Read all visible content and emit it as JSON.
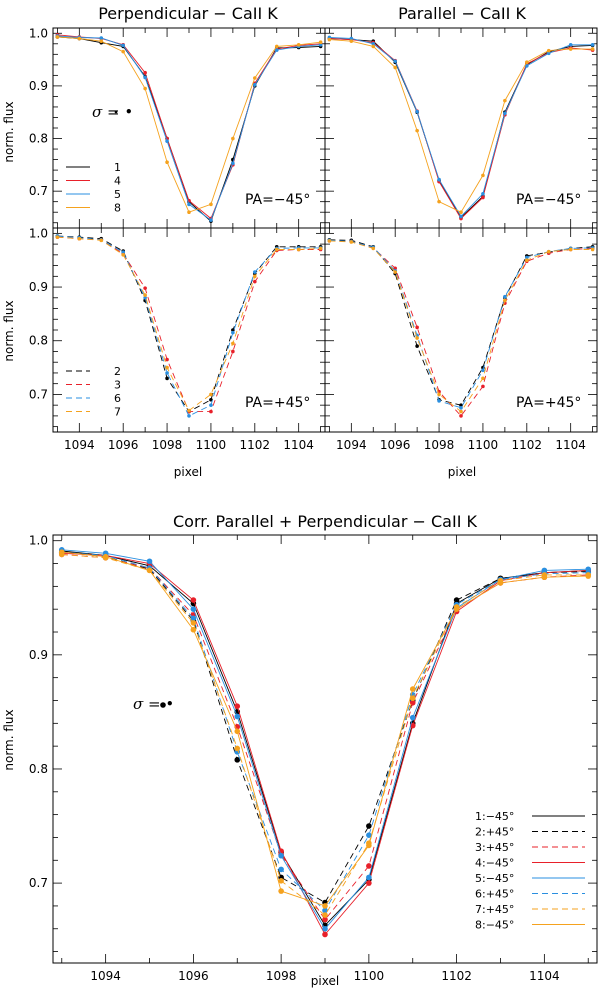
{
  "colors": {
    "1": "#000000",
    "2": "#000000",
    "3": "#e8202a",
    "4": "#e8202a",
    "5": "#2a8fe0",
    "6": "#2a8fe0",
    "7": "#f5a21e",
    "8": "#f5a21e"
  },
  "chart_data": [
    {
      "type": "line",
      "title": "Perpendicular − CaII K",
      "xlabel": "",
      "ylabel": "norm. flux",
      "xlim": [
        1092.8,
        1105.2
      ],
      "ylim": [
        0.63,
        1.01
      ],
      "xticks": [
        "1094",
        "1096",
        "1098",
        "1100",
        "1102",
        "1104"
      ],
      "yticks": [
        "0.7",
        "0.8",
        "0.9",
        "1.0"
      ],
      "annotation": "PA=−45°",
      "sigma_label": "σ = •",
      "legend": [
        "1",
        "4",
        "5",
        "8"
      ],
      "x": [
        1093,
        1094,
        1095,
        1096,
        1097,
        1098,
        1099,
        1100,
        1101,
        1102,
        1103,
        1104,
        1105
      ],
      "series": [
        {
          "name": "1",
          "values": [
            0.993,
            0.99,
            0.982,
            0.975,
            0.918,
            0.8,
            0.68,
            0.643,
            0.76,
            0.9,
            0.972,
            0.973,
            0.975
          ]
        },
        {
          "name": "4",
          "values": [
            0.997,
            0.993,
            0.99,
            0.978,
            0.925,
            0.8,
            0.682,
            0.648,
            0.75,
            0.905,
            0.97,
            0.977,
            0.98
          ]
        },
        {
          "name": "5",
          "values": [
            0.995,
            0.992,
            0.991,
            0.977,
            0.916,
            0.795,
            0.675,
            0.645,
            0.753,
            0.902,
            0.968,
            0.975,
            0.978
          ]
        },
        {
          "name": "8",
          "values": [
            0.993,
            0.99,
            0.985,
            0.965,
            0.895,
            0.755,
            0.66,
            0.675,
            0.8,
            0.915,
            0.975,
            0.978,
            0.983
          ]
        }
      ]
    },
    {
      "type": "line",
      "title": "Parallel − CaII K",
      "xlabel": "",
      "ylabel": "",
      "xlim": [
        1092.8,
        1105.2
      ],
      "ylim": [
        0.63,
        1.01
      ],
      "xticks": [
        "1094",
        "1096",
        "1098",
        "1100",
        "1102",
        "1104"
      ],
      "yticks": [],
      "annotation": "PA=−45°",
      "x": [
        1093,
        1094,
        1095,
        1096,
        1097,
        1098,
        1099,
        1100,
        1101,
        1102,
        1103,
        1104,
        1105
      ],
      "series": [
        {
          "name": "1",
          "values": [
            0.99,
            0.988,
            0.985,
            0.945,
            0.85,
            0.72,
            0.65,
            0.69,
            0.85,
            0.94,
            0.965,
            0.975,
            0.977
          ]
        },
        {
          "name": "4",
          "values": [
            0.99,
            0.988,
            0.982,
            0.948,
            0.852,
            0.718,
            0.648,
            0.688,
            0.845,
            0.942,
            0.963,
            0.972,
            0.968
          ]
        },
        {
          "name": "5",
          "values": [
            0.992,
            0.99,
            0.98,
            0.947,
            0.851,
            0.722,
            0.652,
            0.695,
            0.848,
            0.938,
            0.962,
            0.978,
            0.978
          ]
        },
        {
          "name": "8",
          "values": [
            0.988,
            0.985,
            0.975,
            0.935,
            0.815,
            0.68,
            0.66,
            0.73,
            0.872,
            0.945,
            0.967,
            0.97,
            0.97
          ]
        }
      ]
    },
    {
      "type": "line",
      "title": "",
      "xlabel": "pixel",
      "ylabel": "norm. flux",
      "xlim": [
        1092.8,
        1105.2
      ],
      "ylim": [
        0.63,
        1.01
      ],
      "xticks": [
        "1094",
        "1096",
        "1098",
        "1100",
        "1102",
        "1104"
      ],
      "yticks": [
        "0.7",
        "0.8",
        "0.9",
        "1.0"
      ],
      "annotation": "PA=+45°",
      "legend": [
        "2",
        "3",
        "6",
        "7"
      ],
      "x": [
        1093,
        1094,
        1095,
        1096,
        1097,
        1098,
        1099,
        1100,
        1101,
        1102,
        1103,
        1104,
        1105
      ],
      "series": [
        {
          "name": "2",
          "values": [
            0.995,
            0.993,
            0.99,
            0.967,
            0.875,
            0.73,
            0.668,
            0.69,
            0.82,
            0.925,
            0.975,
            0.975,
            0.975
          ]
        },
        {
          "name": "3",
          "values": [
            0.993,
            0.99,
            0.988,
            0.962,
            0.898,
            0.765,
            0.668,
            0.668,
            0.78,
            0.91,
            0.968,
            0.97,
            0.97
          ]
        },
        {
          "name": "6",
          "values": [
            0.995,
            0.992,
            0.988,
            0.965,
            0.88,
            0.74,
            0.66,
            0.68,
            0.815,
            0.928,
            0.972,
            0.973,
            0.973
          ]
        },
        {
          "name": "7",
          "values": [
            0.993,
            0.99,
            0.987,
            0.96,
            0.885,
            0.75,
            0.67,
            0.7,
            0.795,
            0.92,
            0.97,
            0.97,
            0.972
          ]
        }
      ]
    },
    {
      "type": "line",
      "title": "",
      "xlabel": "pixel",
      "ylabel": "",
      "xlim": [
        1092.8,
        1105.2
      ],
      "ylim": [
        0.63,
        1.01
      ],
      "xticks": [
        "1094",
        "1096",
        "1098",
        "1100",
        "1102",
        "1104"
      ],
      "yticks": [],
      "annotation": "PA=+45°",
      "x": [
        1093,
        1094,
        1095,
        1096,
        1097,
        1098,
        1099,
        1100,
        1101,
        1102,
        1103,
        1104,
        1105
      ],
      "series": [
        {
          "name": "2",
          "values": [
            0.988,
            0.987,
            0.975,
            0.925,
            0.79,
            0.69,
            0.68,
            0.75,
            0.88,
            0.958,
            0.965,
            0.972,
            0.975
          ]
        },
        {
          "name": "3",
          "values": [
            0.986,
            0.985,
            0.973,
            0.935,
            0.825,
            0.705,
            0.66,
            0.715,
            0.87,
            0.948,
            0.963,
            0.97,
            0.972
          ]
        },
        {
          "name": "6",
          "values": [
            0.987,
            0.985,
            0.974,
            0.93,
            0.81,
            0.688,
            0.675,
            0.745,
            0.882,
            0.955,
            0.966,
            0.972,
            0.973
          ]
        },
        {
          "name": "7",
          "values": [
            0.986,
            0.984,
            0.972,
            0.928,
            0.805,
            0.7,
            0.668,
            0.73,
            0.875,
            0.95,
            0.966,
            0.97,
            0.97
          ]
        }
      ]
    },
    {
      "type": "line",
      "title": "Corr. Parallel + Perpendicular − CaII K",
      "xlabel": "pixel",
      "ylabel": "norm. flux",
      "xlim": [
        1092.8,
        1105.2
      ],
      "ylim": [
        0.63,
        1.005
      ],
      "xticks": [
        "1094",
        "1096",
        "1098",
        "1100",
        "1102",
        "1104"
      ],
      "yticks": [
        "0.7",
        "0.8",
        "0.9",
        "1.0"
      ],
      "sigma_label": "σ = •",
      "legend": [
        "1:−45°",
        "2:+45°",
        "3:+45°",
        "4:−45°",
        "5:−45°",
        "6:+45°",
        "7:+45°",
        "8:−45°"
      ],
      "x": [
        1093,
        1094,
        1095,
        1096,
        1097,
        1098,
        1099,
        1100,
        1101,
        1102,
        1103,
        1104,
        1105
      ],
      "series": [
        {
          "name": "1",
          "values": [
            0.991,
            0.987,
            0.978,
            0.945,
            0.85,
            0.727,
            0.663,
            0.703,
            0.84,
            0.945,
            0.967,
            0.972,
            0.974
          ]
        },
        {
          "name": "2",
          "values": [
            0.99,
            0.986,
            0.975,
            0.93,
            0.808,
            0.705,
            0.683,
            0.75,
            0.86,
            0.948,
            0.967,
            0.972,
            0.973
          ]
        },
        {
          "name": "3",
          "values": [
            0.988,
            0.985,
            0.976,
            0.935,
            0.837,
            0.725,
            0.668,
            0.715,
            0.858,
            0.94,
            0.963,
            0.968,
            0.97
          ]
        },
        {
          "name": "4",
          "values": [
            0.989,
            0.987,
            0.98,
            0.948,
            0.855,
            0.728,
            0.655,
            0.7,
            0.838,
            0.938,
            0.965,
            0.972,
            0.974
          ]
        },
        {
          "name": "5",
          "values": [
            0.992,
            0.989,
            0.982,
            0.94,
            0.846,
            0.724,
            0.66,
            0.705,
            0.845,
            0.941,
            0.966,
            0.974,
            0.975
          ]
        },
        {
          "name": "6",
          "values": [
            0.99,
            0.987,
            0.976,
            0.932,
            0.815,
            0.712,
            0.676,
            0.742,
            0.865,
            0.944,
            0.966,
            0.971,
            0.972
          ]
        },
        {
          "name": "7",
          "values": [
            0.988,
            0.985,
            0.974,
            0.928,
            0.818,
            0.702,
            0.672,
            0.735,
            0.862,
            0.942,
            0.965,
            0.97,
            0.97
          ]
        },
        {
          "name": "8",
          "values": [
            0.99,
            0.986,
            0.974,
            0.922,
            0.833,
            0.693,
            0.68,
            0.733,
            0.87,
            0.94,
            0.963,
            0.968,
            0.969
          ]
        }
      ]
    }
  ]
}
